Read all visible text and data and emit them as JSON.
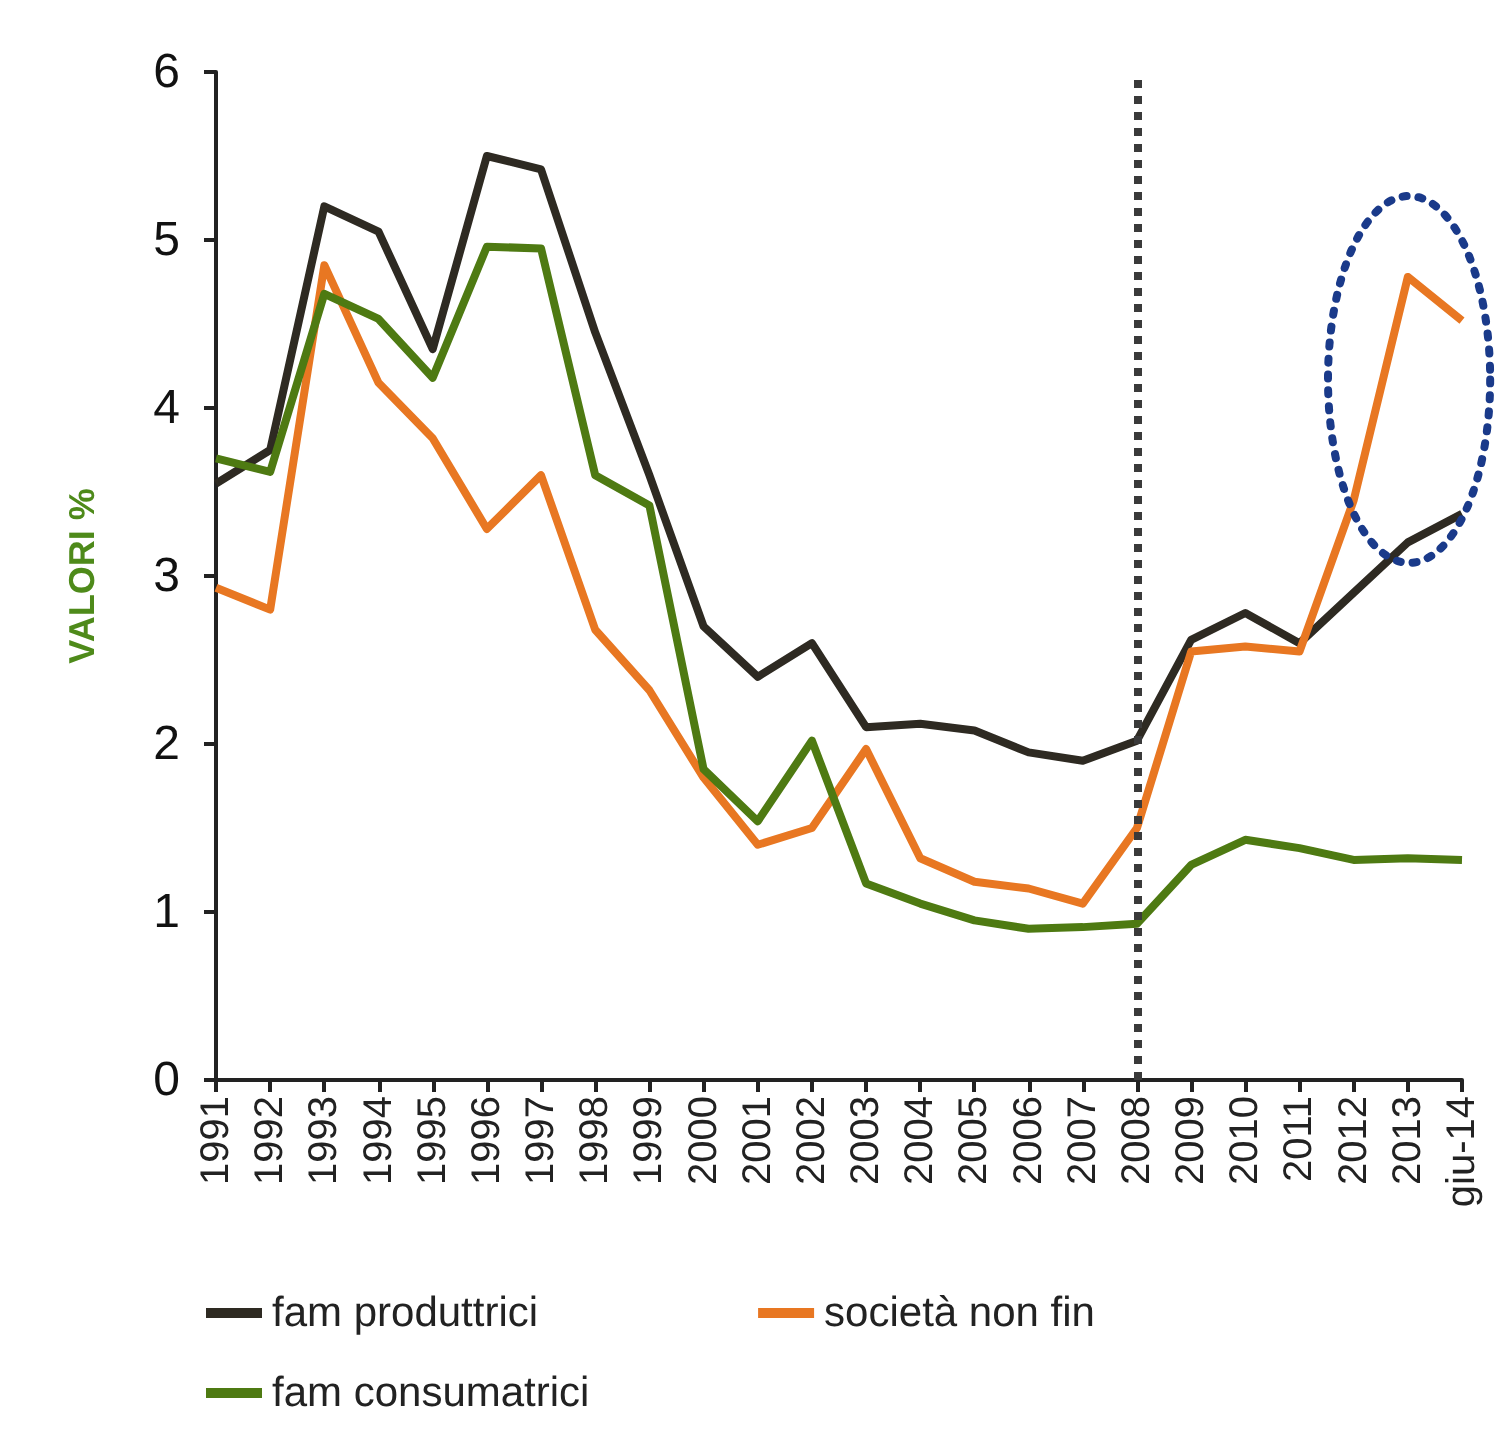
{
  "chart_data": {
    "type": "line",
    "categories": [
      "1991",
      "1992",
      "1993",
      "1994",
      "1995",
      "1996",
      "1997",
      "1998",
      "1999",
      "2000",
      "2001",
      "2002",
      "2003",
      "2004",
      "2005",
      "2006",
      "2007",
      "2008",
      "2009",
      "2010",
      "2011",
      "2012",
      "2013",
      "giu-14"
    ],
    "series": [
      {
        "name": "fam produttrici",
        "color": "#2e2a22",
        "values": [
          3.55,
          3.75,
          5.2,
          5.05,
          4.35,
          5.5,
          5.42,
          4.45,
          3.6,
          2.7,
          2.4,
          2.6,
          2.1,
          2.12,
          2.08,
          1.95,
          1.9,
          2.02,
          2.62,
          2.78,
          2.6,
          2.9,
          3.2,
          3.37
        ]
      },
      {
        "name": "società non fin",
        "color": "#e87722",
        "values": [
          2.93,
          2.8,
          4.85,
          4.15,
          3.82,
          3.28,
          3.6,
          2.68,
          2.32,
          1.8,
          1.4,
          1.5,
          1.97,
          1.32,
          1.18,
          1.14,
          1.05,
          1.5,
          2.55,
          2.58,
          2.55,
          3.45,
          4.78,
          4.52
        ]
      },
      {
        "name": "fam consumatrici",
        "color": "#4e7a12",
        "values": [
          3.7,
          3.62,
          4.68,
          4.53,
          4.18,
          4.96,
          4.95,
          3.6,
          3.42,
          1.85,
          1.54,
          2.02,
          1.17,
          1.05,
          0.95,
          0.9,
          0.91,
          0.93,
          1.28,
          1.43,
          1.38,
          1.31,
          1.32,
          1.31
        ]
      }
    ],
    "ylabel": "VALORI %",
    "ylim": [
      0,
      6
    ],
    "yticks": [
      0,
      1,
      2,
      3,
      4,
      5,
      6
    ],
    "ref_lines": [
      {
        "axis": "x",
        "value": "2008",
        "color": "#3a3a3a",
        "line_style": "dotted"
      }
    ],
    "grid": false,
    "legend": "bottom",
    "marker": "none",
    "line_style": "solid"
  }
}
